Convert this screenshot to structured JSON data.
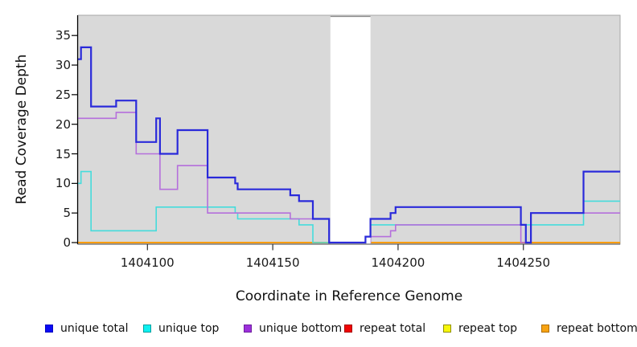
{
  "chart_data": {
    "type": "line",
    "subtype": "step-coverage-plot",
    "xlabel": "Coordinate in Reference Genome",
    "ylabel": "Read Coverage Depth",
    "x_range": [
      1404072.3,
      1404288.6
    ],
    "y_range": [
      0,
      38.4
    ],
    "grid": false,
    "panel_bg": "#d9d9d9",
    "gap_color": "#ffffff",
    "gap_region": {
      "from": 1404173,
      "to": 1404189
    },
    "x_ticks": [
      {
        "coord": 1404100,
        "label": "1404100"
      },
      {
        "coord": 1404150,
        "label": "1404150"
      },
      {
        "coord": 1404200,
        "label": "1404200"
      },
      {
        "coord": 1404250,
        "label": "1404250"
      }
    ],
    "y_ticks": [
      {
        "value": 0,
        "label": "0"
      },
      {
        "value": 5,
        "label": "5"
      },
      {
        "value": 10,
        "label": "10"
      },
      {
        "value": 15,
        "label": "15"
      },
      {
        "value": 20,
        "label": "20"
      },
      {
        "value": 25,
        "label": "25"
      },
      {
        "value": 30,
        "label": "30"
      },
      {
        "value": 35,
        "label": "35"
      }
    ],
    "series": [
      {
        "name": "repeat top",
        "color": "#f2f20a",
        "width": 1.6,
        "layer": "under",
        "steps": [
          [
            1404072.3,
            0
          ]
        ],
        "end": 1404288.6
      },
      {
        "name": "repeat total",
        "color": "#e00505",
        "width": 1.6,
        "layer": "under",
        "steps": [
          [
            1404072.3,
            0
          ]
        ],
        "end": 1404288.6
      },
      {
        "name": "repeat bottom",
        "color": "#ff9d0a",
        "width": 2,
        "layer": "under",
        "steps": [
          [
            1404072.3,
            0
          ]
        ],
        "end": 1404288.6
      },
      {
        "name": "unique top",
        "color": "#45dcdc",
        "width": 1.6,
        "layer": "under",
        "steps": [
          [
            1404072.3,
            10
          ],
          [
            1404073.5,
            12
          ],
          [
            1404077.5,
            2
          ],
          [
            1404103.5,
            6
          ],
          [
            1404135,
            5
          ],
          [
            1404136,
            4
          ],
          [
            1404160.5,
            3
          ],
          [
            1404166,
            0
          ],
          [
            1404189,
            3
          ],
          [
            1404274,
            7
          ]
        ],
        "end": 1404288.6
      },
      {
        "name": "unique bottom",
        "color": "#b56fdc",
        "width": 1.6,
        "layer": "under",
        "steps": [
          [
            1404072.3,
            21
          ],
          [
            1404087.5,
            22
          ],
          [
            1404095.5,
            15
          ],
          [
            1404105,
            9
          ],
          [
            1404112,
            13
          ],
          [
            1404124,
            5
          ],
          [
            1404157,
            4
          ],
          [
            1404172.5,
            0
          ],
          [
            1404189,
            1
          ],
          [
            1404197,
            2
          ],
          [
            1404199,
            3
          ],
          [
            1404249,
            0
          ],
          [
            1404253,
            5
          ]
        ],
        "end": 1404288.6
      },
      {
        "name": "unique total",
        "color": "#2a2ada",
        "width": 2.2,
        "layer": "over",
        "steps": [
          [
            1404072.3,
            31
          ],
          [
            1404073.5,
            33
          ],
          [
            1404077.5,
            23
          ],
          [
            1404087.5,
            24
          ],
          [
            1404095.5,
            17
          ],
          [
            1404103.5,
            21
          ],
          [
            1404105,
            15
          ],
          [
            1404112,
            19
          ],
          [
            1404124,
            11
          ],
          [
            1404135,
            10
          ],
          [
            1404136,
            9
          ],
          [
            1404157,
            8
          ],
          [
            1404160.5,
            7
          ],
          [
            1404166,
            4
          ],
          [
            1404172.5,
            0
          ],
          [
            1404187,
            1
          ],
          [
            1404189,
            4
          ],
          [
            1404197,
            5
          ],
          [
            1404199,
            6
          ],
          [
            1404249,
            3
          ],
          [
            1404251,
            0
          ],
          [
            1404253,
            5
          ],
          [
            1404274,
            12
          ]
        ],
        "end": 1404288.6
      }
    ],
    "legend": {
      "position": "bottom",
      "items": [
        {
          "label": "unique total",
          "fill": "#0a0af5",
          "border": "#0707c0"
        },
        {
          "label": "unique top",
          "fill": "#0cf0f0",
          "border": "#089f9f"
        },
        {
          "label": "unique bottom",
          "fill": "#9c2fdb",
          "border": "#6d1f9d"
        },
        {
          "label": "repeat total",
          "fill": "#f00505",
          "border": "#a80404"
        },
        {
          "label": "repeat top",
          "fill": "#f7f70a",
          "border": "#8f8f06"
        },
        {
          "label": "repeat bottom",
          "fill": "#f7a313",
          "border": "#b06f05"
        }
      ]
    }
  }
}
